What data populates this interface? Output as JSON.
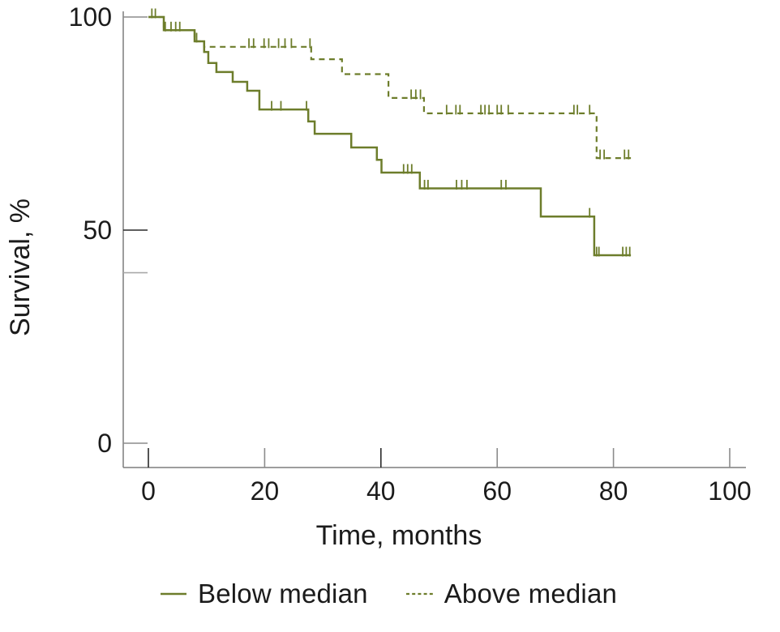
{
  "chart_data": {
    "type": "line",
    "subtype": "kaplan-meier-step-survival",
    "title": "",
    "xlabel": "Time, months",
    "ylabel": "Survival, %",
    "xlim": [
      0,
      100
    ],
    "ylim": [
      0,
      100
    ],
    "grid": false,
    "legend_position": "bottom",
    "axis_color": "#7d7d7d",
    "label_color": "#1b1b1b",
    "x_ticks": [
      {
        "value": 0,
        "label": "0",
        "shade": "dark"
      },
      {
        "value": 20,
        "label": "20",
        "shade": "mid"
      },
      {
        "value": 40,
        "label": "40",
        "shade": "dark"
      },
      {
        "value": 60,
        "label": "60",
        "shade": "mid"
      },
      {
        "value": 80,
        "label": "80",
        "shade": "mid"
      },
      {
        "value": 100,
        "label": "100",
        "shade": "mid"
      }
    ],
    "y_ticks": [
      {
        "value": 100,
        "label": "100",
        "shade": "mid"
      },
      {
        "value": 50,
        "label": "50",
        "shade": "dark"
      },
      {
        "value": 40,
        "label": "",
        "shade": "light"
      },
      {
        "value": 0,
        "label": "0",
        "shade": "mid"
      }
    ],
    "series": [
      {
        "name": "Below median",
        "style": "solid",
        "color": "#6d7d2b",
        "end_t": 83,
        "steps": [
          [
            0,
            100
          ],
          [
            2.65,
            96.9
          ],
          [
            7.95,
            94.3
          ],
          [
            9.6,
            91.8
          ],
          [
            10.3,
            89.2
          ],
          [
            11.7,
            87.1
          ],
          [
            14.5,
            84.8
          ],
          [
            17.0,
            82.7
          ],
          [
            19.1,
            78.3
          ],
          [
            27.5,
            75.5
          ],
          [
            28.6,
            72.6
          ],
          [
            34.9,
            69.4
          ],
          [
            39.3,
            66.5
          ],
          [
            40.1,
            63.5
          ],
          [
            46.7,
            59.8
          ],
          [
            67.5,
            53.2
          ],
          [
            76.7,
            44.1
          ]
        ],
        "censors": [
          [
            0.6,
            100
          ],
          [
            1.2,
            100
          ],
          [
            2.9,
            96.9
          ],
          [
            3.9,
            96.9
          ],
          [
            4.7,
            96.9
          ],
          [
            5.4,
            96.9
          ],
          [
            8.3,
            94.3
          ],
          [
            21.2,
            78.3
          ],
          [
            22.8,
            78.3
          ],
          [
            27.2,
            78.3
          ],
          [
            43.9,
            63.5
          ],
          [
            44.6,
            63.5
          ],
          [
            45.3,
            63.5
          ],
          [
            47.5,
            59.8
          ],
          [
            48.1,
            59.8
          ],
          [
            53.0,
            59.8
          ],
          [
            53.9,
            59.8
          ],
          [
            54.8,
            59.8
          ],
          [
            60.7,
            59.8
          ],
          [
            61.5,
            59.8
          ],
          [
            75.9,
            53.2
          ],
          [
            77.1,
            44.1
          ],
          [
            77.5,
            44.1
          ],
          [
            81.6,
            44.1
          ],
          [
            82.2,
            44.1
          ],
          [
            82.8,
            44.1
          ]
        ]
      },
      {
        "name": "Above median",
        "style": "dashed",
        "color": "#6d7d2b",
        "end_t": 83,
        "steps": [
          [
            0,
            100
          ],
          [
            2.65,
            96.9
          ],
          [
            7.95,
            94.3
          ],
          [
            9.6,
            93.0
          ],
          [
            28.0,
            90.1
          ],
          [
            33.3,
            86.6
          ],
          [
            41.3,
            81.0
          ],
          [
            47.4,
            77.4
          ],
          [
            77.1,
            66.9
          ]
        ],
        "censors": [
          [
            17.3,
            93.0
          ],
          [
            18.1,
            93.0
          ],
          [
            19.9,
            93.0
          ],
          [
            20.7,
            93.0
          ],
          [
            22.4,
            93.0
          ],
          [
            23.5,
            93.0
          ],
          [
            24.6,
            93.0
          ],
          [
            27.8,
            93.0
          ],
          [
            45.2,
            81.0
          ],
          [
            46.0,
            81.0
          ],
          [
            46.8,
            81.0
          ],
          [
            51.3,
            77.4
          ],
          [
            52.9,
            77.4
          ],
          [
            53.6,
            77.4
          ],
          [
            57.2,
            77.4
          ],
          [
            57.9,
            77.4
          ],
          [
            58.6,
            77.4
          ],
          [
            60.0,
            77.4
          ],
          [
            60.7,
            77.4
          ],
          [
            61.9,
            77.4
          ],
          [
            73.2,
            77.4
          ],
          [
            73.8,
            77.4
          ],
          [
            75.9,
            77.4
          ],
          [
            77.7,
            66.9
          ],
          [
            78.4,
            66.9
          ],
          [
            81.9,
            66.9
          ],
          [
            82.6,
            66.9
          ]
        ]
      }
    ]
  },
  "legend": {
    "below_label": "Below median",
    "above_label": "Above median"
  }
}
